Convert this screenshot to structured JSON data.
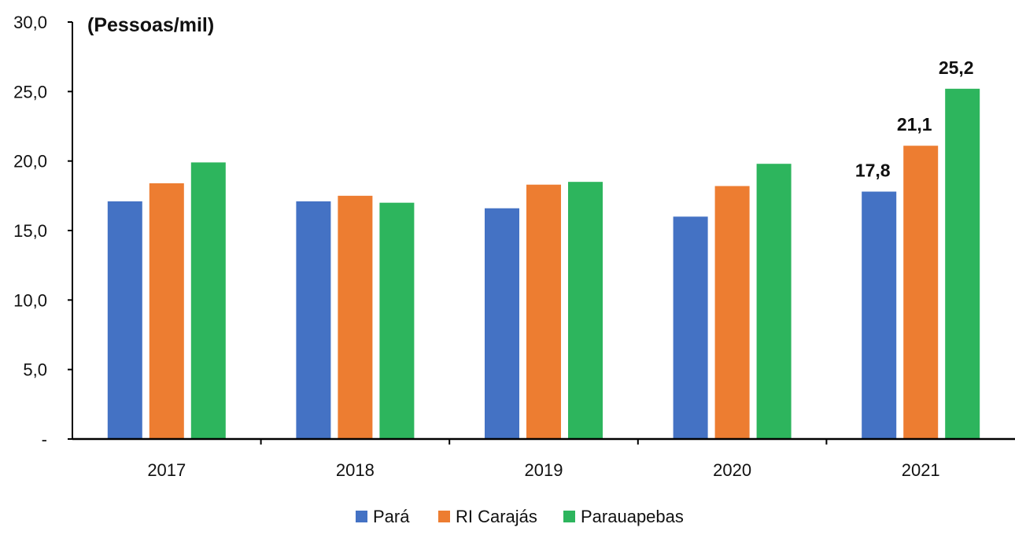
{
  "chart_data": {
    "type": "bar",
    "unit_label": "(Pessoas/mil)",
    "categories": [
      "2017",
      "2018",
      "2019",
      "2020",
      "2021"
    ],
    "series": [
      {
        "name": "Pará",
        "color": "#4472C4",
        "values": [
          17.1,
          17.1,
          16.6,
          16.0,
          17.8
        ]
      },
      {
        "name": "RI Carajás",
        "color": "#ED7D31",
        "values": [
          18.4,
          17.5,
          18.3,
          18.2,
          21.1
        ]
      },
      {
        "name": "Parauapebas",
        "color": "#2DB55D",
        "values": [
          19.9,
          17.0,
          18.5,
          19.8,
          25.2
        ]
      }
    ],
    "data_labels": [
      {
        "series": 0,
        "category": 4,
        "text": "17,8"
      },
      {
        "series": 1,
        "category": 4,
        "text": "21,1"
      },
      {
        "series": 2,
        "category": 4,
        "text": "25,2"
      }
    ],
    "y_ticks": [
      {
        "value": 0,
        "label": "-"
      },
      {
        "value": 5,
        "label": "5,0"
      },
      {
        "value": 10,
        "label": "10,0"
      },
      {
        "value": 15,
        "label": "15,0"
      },
      {
        "value": 20,
        "label": "20,0"
      },
      {
        "value": 25,
        "label": "25,0"
      },
      {
        "value": 30,
        "label": "30,0"
      }
    ],
    "ylim": [
      0,
      30
    ],
    "grid": false,
    "legend_position": "bottom"
  }
}
